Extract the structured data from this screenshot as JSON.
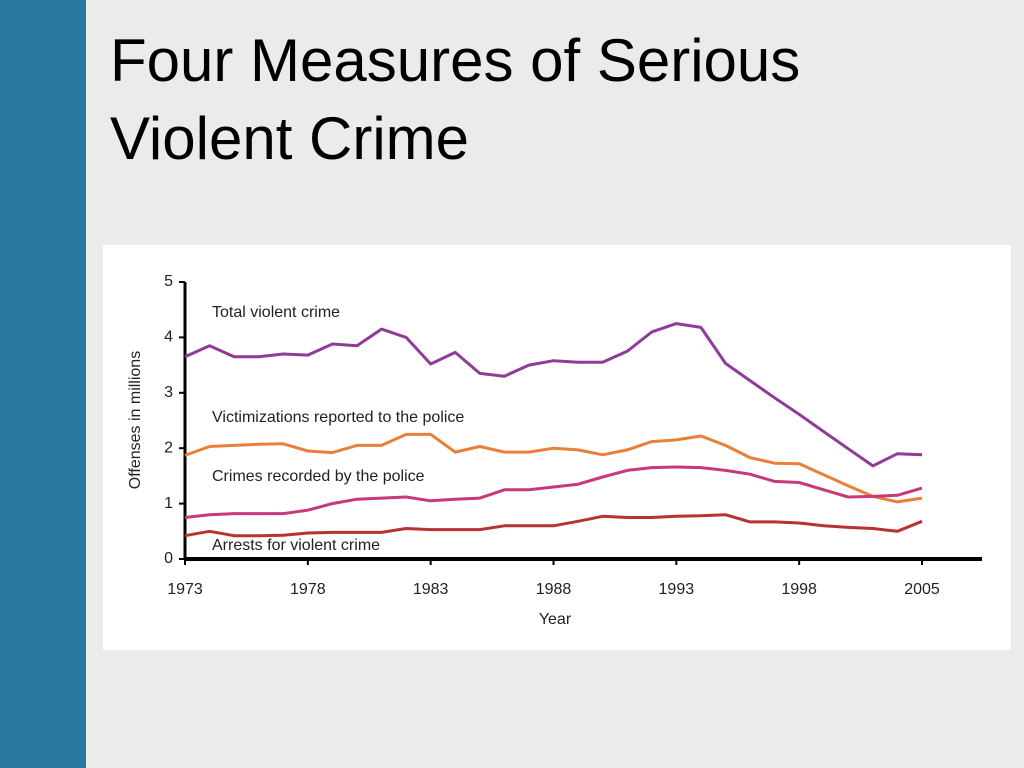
{
  "title": "Four Measures of Serious Violent Crime",
  "chart_data": {
    "type": "line",
    "xlabel": "Year",
    "ylabel": "Offenses in millions",
    "categories": [
      "1973",
      null,
      null,
      null,
      null,
      "1978",
      null,
      null,
      null,
      null,
      "1983",
      null,
      null,
      null,
      null,
      "1988",
      null,
      null,
      null,
      null,
      "1993",
      null,
      null,
      null,
      null,
      "1998",
      null,
      null,
      null,
      null,
      "2005"
    ],
    "ylim": [
      0,
      5
    ],
    "yticks": [
      0,
      1,
      2,
      3,
      4,
      5
    ],
    "series": [
      {
        "name": "Total violent crime",
        "color": "#8e3c98",
        "values": [
          3.65,
          3.85,
          3.65,
          3.65,
          3.7,
          3.68,
          3.88,
          3.85,
          4.15,
          4.0,
          3.52,
          3.73,
          3.35,
          3.3,
          3.5,
          3.58,
          3.55,
          3.55,
          3.75,
          4.1,
          4.25,
          4.18,
          3.53,
          3.22,
          2.91,
          2.61,
          2.3,
          1.99,
          1.68,
          1.9,
          1.88
        ]
      },
      {
        "name": "Victimizations reported to the police",
        "color": "#e8803a",
        "values": [
          1.87,
          2.03,
          2.05,
          2.07,
          2.08,
          1.95,
          1.92,
          2.05,
          2.05,
          2.25,
          2.25,
          1.93,
          2.03,
          1.93,
          1.93,
          2.0,
          1.97,
          1.88,
          1.97,
          2.12,
          2.15,
          2.22,
          2.05,
          1.83,
          1.73,
          1.72,
          1.52,
          1.32,
          1.13,
          1.03,
          1.1
        ]
      },
      {
        "name": "Crimes recorded by the police",
        "color": "#c8387a",
        "values": [
          0.75,
          0.8,
          0.82,
          0.82,
          0.82,
          0.88,
          1.0,
          1.08,
          1.1,
          1.12,
          1.05,
          1.08,
          1.1,
          1.25,
          1.25,
          1.3,
          1.35,
          1.48,
          1.6,
          1.65,
          1.66,
          1.65,
          1.6,
          1.53,
          1.4,
          1.38,
          1.25,
          1.12,
          1.13,
          1.15,
          1.28
        ]
      },
      {
        "name": "Arrests for violent crime",
        "color": "#b83232",
        "values": [
          0.42,
          0.5,
          0.42,
          0.42,
          0.43,
          0.47,
          0.48,
          0.48,
          0.48,
          0.55,
          0.53,
          0.53,
          0.53,
          0.6,
          0.6,
          0.6,
          0.68,
          0.77,
          0.75,
          0.75,
          0.77,
          0.78,
          0.8,
          0.67,
          0.67,
          0.65,
          0.6,
          0.57,
          0.55,
          0.5,
          0.68
        ]
      }
    ]
  }
}
